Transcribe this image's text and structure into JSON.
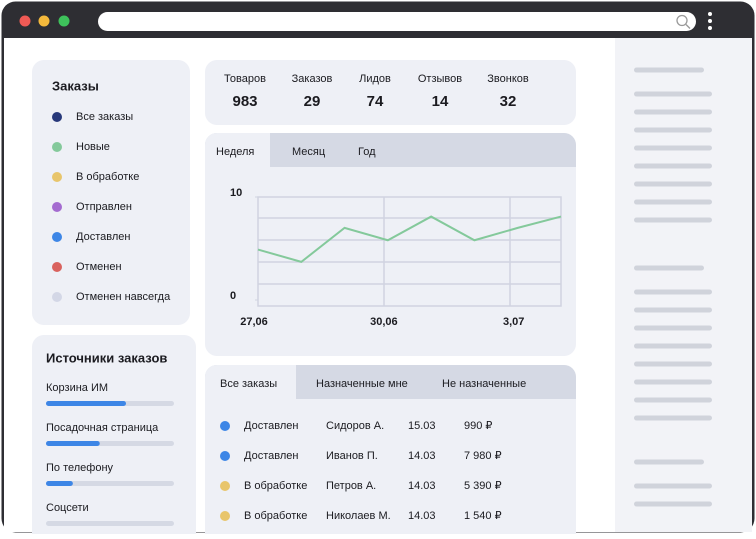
{
  "stats": [
    {
      "label": "Товаров",
      "value": 983
    },
    {
      "label": "Заказов",
      "value": 29
    },
    {
      "label": "Лидов",
      "value": 74
    },
    {
      "label": "Отзывов",
      "value": 14
    },
    {
      "label": "Звонков",
      "value": 32
    }
  ],
  "orders": {
    "title": "Заказы",
    "statuses": [
      {
        "label": "Все заказы",
        "color": "#27387a"
      },
      {
        "label": "Новые",
        "color": "#84c99b"
      },
      {
        "label": "В обработке",
        "color": "#e8c56b"
      },
      {
        "label": "Отправлен",
        "color": "#a46bd0"
      },
      {
        "label": "Доставлен",
        "color": "#3d86e6"
      },
      {
        "label": "Отменен",
        "color": "#d9625e"
      },
      {
        "label": "Отменен навсегда",
        "color": "#d3d7e6"
      }
    ]
  },
  "sources": {
    "title": "Источники заказов",
    "color": "#3d86e6",
    "items": [
      {
        "label": "Корзина ИМ",
        "share": 62.5
      },
      {
        "label": "Посадочная страница",
        "share": 42
      },
      {
        "label": "По телефону",
        "share": 21
      },
      {
        "label": "Соцсети",
        "share": 0
      }
    ]
  },
  "chart_tabs": [
    "Неделя",
    "Месяц",
    "Год"
  ],
  "chart_data": {
    "type": "line",
    "categories": [
      "27,06",
      null,
      null,
      "30,06",
      null,
      null,
      "3,07",
      null
    ],
    "series": [
      {
        "color": "#84c99b",
        "values": [
          4.9,
          3.7,
          7.0,
          5.8,
          8.1,
          5.8,
          7.0,
          8.1
        ]
      }
    ],
    "ylim": [
      0,
      10
    ],
    "yticks": [
      0,
      10
    ]
  },
  "table": {
    "tabs": [
      "Все заказы",
      "Назначенные мне",
      "Не назначенные"
    ],
    "rows": [
      {
        "color": "#3d86e6",
        "cells": [
          "Доставлен",
          "Сидоров А.",
          "15.03",
          "990 ₽"
        ]
      },
      {
        "color": "#3d86e6",
        "cells": [
          "Доставлен",
          "Иванов П.",
          "14.03",
          "7 980 ₽"
        ]
      },
      {
        "color": "#e8c56b",
        "cells": [
          "В обработке",
          "Петров А.",
          "14.03",
          "5 390 ₽"
        ]
      },
      {
        "color": "#e8c56b",
        "cells": [
          "В обработке",
          "Николаев М.",
          "14.03",
          "1 540 ₽"
        ]
      }
    ]
  }
}
